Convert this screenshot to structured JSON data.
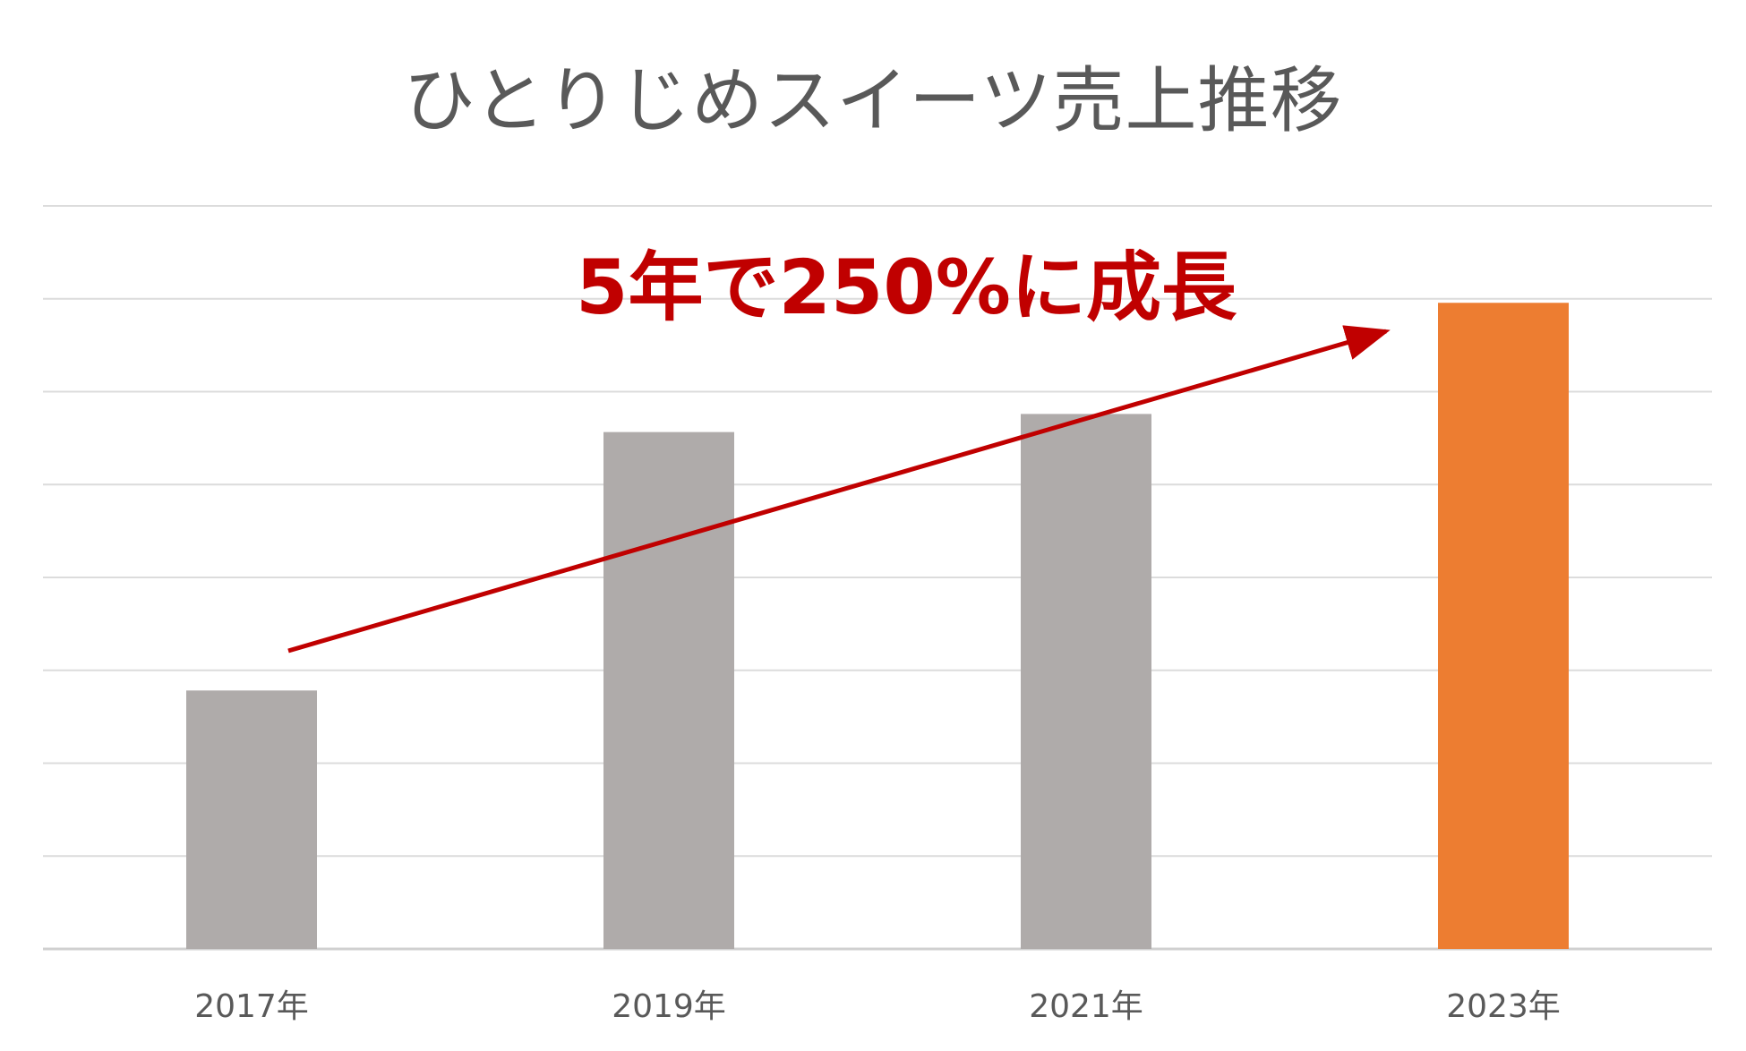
{
  "chart_data": {
    "type": "bar",
    "title": "ひとりじめスイーツ売上推移",
    "categories": [
      "2017年",
      "2019年",
      "2021年",
      "2023年"
    ],
    "values": [
      100,
      200,
      207,
      250
    ],
    "ylim": [
      0,
      287.5
    ],
    "grid": true,
    "legend": "none",
    "bar_colors": [
      "#afabaa",
      "#afabaa",
      "#afabaa",
      "#ed7d31"
    ],
    "annotation": {
      "text": "5年で250%に成長",
      "color": "#c00000"
    }
  }
}
